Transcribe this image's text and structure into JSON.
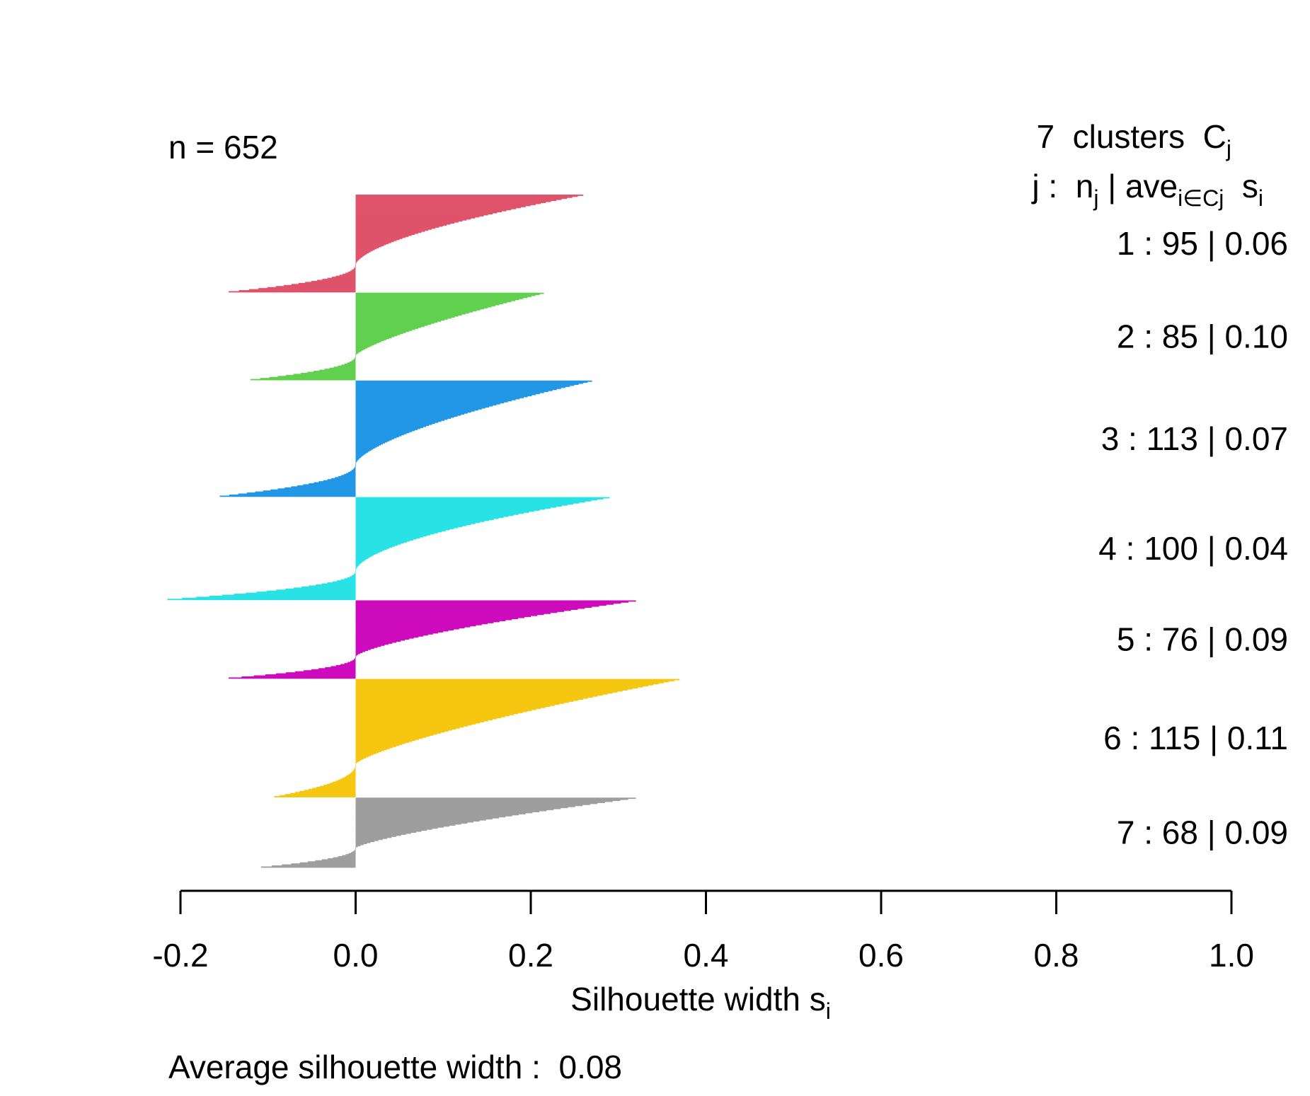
{
  "n_label": "n = 652",
  "clusters_header": {
    "prefix": "7  clusters  C",
    "sub": "j"
  },
  "legend_header": {
    "j": "j :  n",
    "j_sub": "j",
    "ave": " | ave",
    "ave_sub": "i∈Cj",
    "s": "  s",
    "s_sub": "i"
  },
  "xlabel": {
    "main": "Silhouette width s",
    "sub": "i"
  },
  "average_label": "Average silhouette width :  0.08",
  "chart_data": {
    "type": "bar",
    "orientation": "horizontal",
    "xlabel": "Silhouette width s_i",
    "xlim": [
      -0.2,
      1.0
    ],
    "xticks": [
      -0.2,
      0.0,
      0.2,
      0.4,
      0.6,
      0.8,
      1.0
    ],
    "xtick_labels": [
      "-0.2",
      "0.0",
      "0.2",
      "0.4",
      "0.6",
      "0.8",
      "1.0"
    ],
    "n": 652,
    "average_silhouette_width": 0.08,
    "clusters": [
      {
        "j": 1,
        "n": 95,
        "ave": "0.06",
        "color": "#DF536B",
        "max": 0.26,
        "min": -0.145,
        "shape": 1.6
      },
      {
        "j": 2,
        "n": 85,
        "ave": "0.10",
        "color": "#61D04F",
        "max": 0.215,
        "min": -0.12,
        "shape": 1.3
      },
      {
        "j": 3,
        "n": 113,
        "ave": "0.07",
        "color": "#2297E6",
        "max": 0.27,
        "min": -0.155,
        "shape": 1.5
      },
      {
        "j": 4,
        "n": 100,
        "ave": "0.04",
        "color": "#28E2E5",
        "max": 0.29,
        "min": -0.215,
        "shape": 1.7
      },
      {
        "j": 5,
        "n": 76,
        "ave": "0.09",
        "color": "#CD0BBC",
        "max": 0.32,
        "min": -0.145,
        "shape": 1.4
      },
      {
        "j": 6,
        "n": 115,
        "ave": "0.11",
        "color": "#F5C710",
        "max": 0.37,
        "min": -0.093,
        "shape": 1.3
      },
      {
        "j": 7,
        "n": 68,
        "ave": "0.09",
        "color": "#9E9E9E",
        "max": 0.32,
        "min": -0.108,
        "shape": 1.3
      }
    ]
  }
}
